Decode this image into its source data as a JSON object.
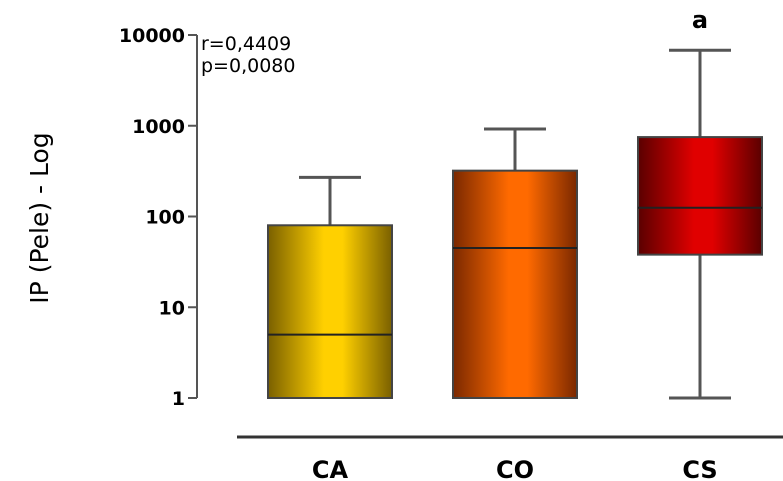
{
  "chart_data": {
    "type": "box",
    "ylabel": "IP (Pele) - Log",
    "xlabel": "",
    "scale": "log",
    "ylim": [
      1,
      10000
    ],
    "yticks": [
      "1",
      "10",
      "100",
      "1000",
      "10000"
    ],
    "ytick_values": [
      1,
      10,
      100,
      1000,
      10000
    ],
    "categories": [
      "CA",
      "CO",
      "CS"
    ],
    "boxes": [
      {
        "category": "CA",
        "min": 1,
        "q1": 1,
        "median": 5,
        "q3": 80,
        "max": 270,
        "color_light": "#ffd000",
        "color_dark": "#7a6000",
        "annotation": ""
      },
      {
        "category": "CO",
        "min": 1,
        "q1": 1,
        "median": 45,
        "q3": 320,
        "max": 920,
        "color_light": "#ff6a00",
        "color_dark": "#7a2800",
        "annotation": ""
      },
      {
        "category": "CS",
        "min": 1,
        "q1": 38,
        "median": 125,
        "q3": 750,
        "max": 6800,
        "color_light": "#e00000",
        "color_dark": "#5a0000",
        "annotation": "a"
      }
    ],
    "stats": [
      "r=0,4409",
      "p=0,0080"
    ]
  }
}
